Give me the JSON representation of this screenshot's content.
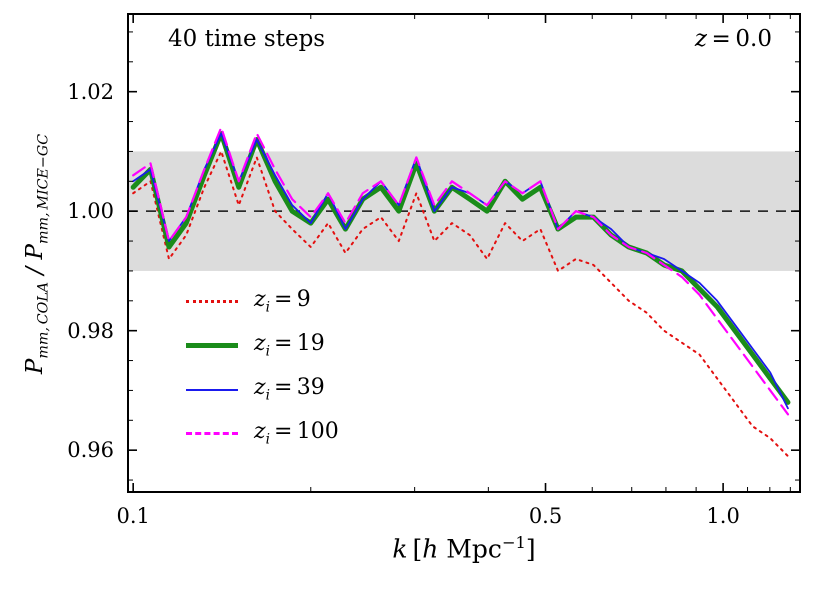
{
  "annotations": {
    "left": "40 time steps",
    "right_var": "z",
    "right_rest": " = 0.0"
  },
  "labels": {
    "ylabel": {
      "p1": "P",
      "s1": "mm, COLA",
      "sep": " / ",
      "p2": "P",
      "s2": "mm, MICE−GC"
    },
    "xlabel": {
      "k": "k",
      "open": " [",
      "h": "h",
      "unit": " Mpc",
      "exp": "−1",
      "close": "]"
    }
  },
  "legend": {
    "items": [
      {
        "var": "z",
        "sub": "i",
        "value": "= 9"
      },
      {
        "var": "z",
        "sub": "i",
        "value": "= 19"
      },
      {
        "var": "z",
        "sub": "i",
        "value": "= 39"
      },
      {
        "var": "z",
        "sub": "i",
        "value": "= 100"
      }
    ]
  },
  "chart_data": {
    "type": "line",
    "title": "",
    "xlabel": "k [h Mpc^-1]",
    "ylabel": "P_mm,COLA / P_mm,MICE-GC",
    "xscale": "log",
    "xlim": [
      0.098,
      1.35
    ],
    "ylim": [
      0.953,
      1.033
    ],
    "annotation_left": "40 time steps",
    "annotation_right": "z = 0.0",
    "x": [
      0.1,
      0.107,
      0.115,
      0.123,
      0.132,
      0.141,
      0.151,
      0.162,
      0.174,
      0.186,
      0.2,
      0.214,
      0.229,
      0.245,
      0.263,
      0.282,
      0.302,
      0.324,
      0.347,
      0.372,
      0.398,
      0.427,
      0.457,
      0.49,
      0.525,
      0.563,
      0.603,
      0.646,
      0.692,
      0.742,
      0.794,
      0.851,
      0.912,
      0.977,
      1.047,
      1.122,
      1.202,
      1.288
    ],
    "series": [
      {
        "name": "z_i = 9",
        "color": "#e31010",
        "style": "dotted",
        "width": 2,
        "values": [
          1.003,
          1.005,
          0.992,
          0.996,
          1.004,
          1.01,
          1.001,
          1.009,
          1.0,
          0.997,
          0.994,
          0.998,
          0.993,
          0.997,
          0.999,
          0.995,
          1.003,
          0.995,
          0.998,
          0.996,
          0.992,
          0.998,
          0.995,
          0.997,
          0.99,
          0.992,
          0.991,
          0.988,
          0.985,
          0.983,
          0.98,
          0.978,
          0.976,
          0.972,
          0.968,
          0.964,
          0.962,
          0.959
        ]
      },
      {
        "name": "z_i = 19",
        "color": "#1a8c1a",
        "style": "solid",
        "width": 5,
        "values": [
          1.004,
          1.007,
          0.994,
          0.998,
          1.006,
          1.013,
          1.004,
          1.012,
          1.005,
          1.0,
          0.998,
          1.002,
          0.997,
          1.002,
          1.004,
          1.0,
          1.008,
          1.0,
          1.004,
          1.002,
          1.0,
          1.005,
          1.002,
          1.004,
          0.997,
          0.999,
          0.999,
          0.996,
          0.994,
          0.993,
          0.991,
          0.99,
          0.987,
          0.984,
          0.98,
          0.976,
          0.972,
          0.968
        ]
      },
      {
        "name": "z_i = 39",
        "color": "#1a1aee",
        "style": "solid",
        "width": 1.8,
        "values": [
          1.005,
          1.007,
          0.995,
          0.999,
          1.007,
          1.013,
          1.005,
          1.012,
          1.006,
          1.001,
          0.998,
          1.003,
          0.997,
          1.002,
          1.005,
          1.001,
          1.009,
          1.0,
          1.004,
          1.003,
          1.001,
          1.005,
          1.003,
          1.005,
          0.997,
          1.0,
          0.999,
          0.997,
          0.994,
          0.993,
          0.992,
          0.99,
          0.988,
          0.985,
          0.981,
          0.977,
          0.973,
          0.967
        ]
      },
      {
        "name": "z_i = 100",
        "color": "#ff00ff",
        "style": "dashed",
        "width": 2.2,
        "values": [
          1.006,
          1.008,
          0.995,
          0.999,
          1.007,
          1.014,
          1.005,
          1.013,
          1.007,
          1.002,
          0.999,
          1.003,
          0.998,
          1.003,
          1.005,
          1.001,
          1.009,
          1.001,
          1.005,
          1.003,
          1.001,
          1.005,
          1.003,
          1.005,
          0.997,
          1.0,
          0.999,
          0.996,
          0.994,
          0.993,
          0.991,
          0.989,
          0.986,
          0.982,
          0.978,
          0.974,
          0.97,
          0.966
        ]
      }
    ],
    "reference_line": {
      "y": 1.0,
      "style": "dashed",
      "color": "#111111"
    },
    "shaded_band": {
      "ymin": 0.99,
      "ymax": 1.01,
      "color": "#dcdcdc"
    },
    "xticks": {
      "major": {
        "values": [
          0.1,
          0.5,
          1.0
        ],
        "labels": [
          "0.1",
          "0.5",
          "1.0"
        ]
      },
      "minor": [
        0.2,
        0.3,
        0.4,
        0.6,
        0.7,
        0.8,
        0.9,
        1.1,
        1.2,
        1.3
      ]
    },
    "yticks": {
      "major": {
        "values": [
          0.96,
          0.98,
          1.0,
          1.02
        ],
        "labels": [
          "0.96",
          "0.98",
          "1.00",
          "1.02"
        ]
      },
      "minor_step": 0.005
    },
    "legend_position": "lower left inside",
    "grid": false
  }
}
